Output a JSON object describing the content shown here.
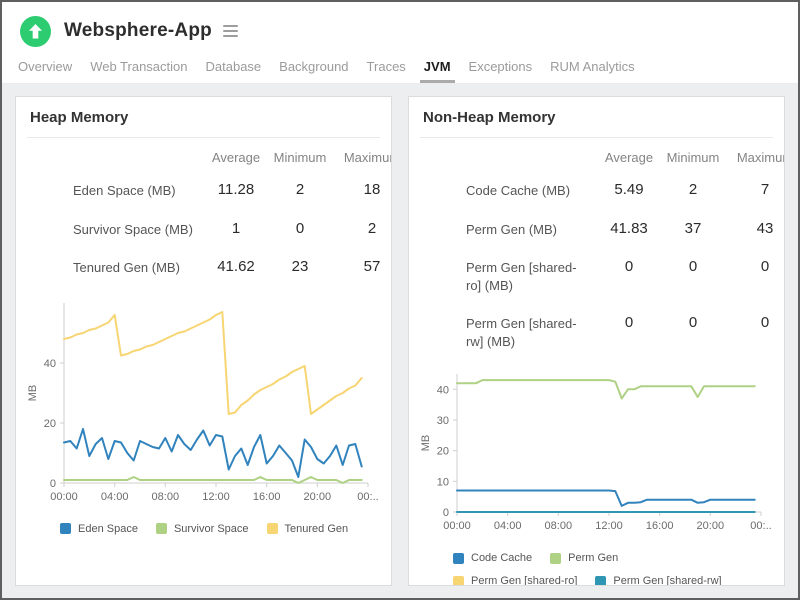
{
  "header": {
    "app_title": "Websphere-App",
    "status_icon": "up-arrow-circle",
    "status_color": "#2ecc71",
    "menu_icon": "hamburger"
  },
  "tabs": [
    {
      "label": "Overview",
      "active": false
    },
    {
      "label": "Web Transaction",
      "active": false
    },
    {
      "label": "Database",
      "active": false
    },
    {
      "label": "Background",
      "active": false
    },
    {
      "label": "Traces",
      "active": false
    },
    {
      "label": "JVM",
      "active": true
    },
    {
      "label": "Exceptions",
      "active": false
    },
    {
      "label": "RUM Analytics",
      "active": false
    }
  ],
  "panels": [
    {
      "title": "Heap Memory",
      "table": {
        "headers": [
          "Average",
          "Minimum",
          "Maximum"
        ],
        "rows": [
          {
            "label": "Eden Space (MB)",
            "values": [
              "11.28",
              "2",
              "18"
            ]
          },
          {
            "label": "Survivor Space (MB)",
            "values": [
              "1",
              "0",
              "2"
            ]
          },
          {
            "label": "Tenured Gen (MB)",
            "values": [
              "41.62",
              "23",
              "57"
            ]
          }
        ]
      }
    },
    {
      "title": "Non-Heap Memory",
      "table": {
        "headers": [
          "Average",
          "Minimum",
          "Maximum"
        ],
        "rows": [
          {
            "label": "Code Cache (MB)",
            "values": [
              "5.49",
              "2",
              "7"
            ]
          },
          {
            "label": "Perm Gen (MB)",
            "values": [
              "41.83",
              "37",
              "43"
            ]
          },
          {
            "label": "Perm Gen [shared-ro] (MB)",
            "values": [
              "0",
              "0",
              "0"
            ]
          },
          {
            "label": "Perm Gen [shared-rw] (MB)",
            "values": [
              "0",
              "0",
              "0"
            ]
          }
        ]
      }
    }
  ],
  "chart_data": [
    {
      "type": "line",
      "title": "Heap Memory",
      "xlabel": "",
      "ylabel": "MB",
      "ylim": [
        0,
        60
      ],
      "yticks": [
        0,
        20,
        40
      ],
      "grid": "off",
      "legend_position": "bottom",
      "legend_wrap": false,
      "x_labels": [
        "00:00",
        "04:00",
        "08:00",
        "12:00",
        "16:00",
        "20:00",
        "00:.."
      ],
      "series": [
        {
          "name": "Eden Space",
          "color": "#3183bd",
          "values": [
            13.5,
            14,
            11.5,
            18,
            9,
            13,
            15,
            8,
            14,
            13.5,
            10,
            7.5,
            14,
            13,
            12,
            11.5,
            15,
            10.5,
            16,
            13,
            11,
            14.5,
            17.5,
            12.5,
            16,
            15.5,
            4.5,
            9,
            11.5,
            6,
            12,
            16,
            6.5,
            9,
            12.5,
            10,
            7.5,
            2,
            14.5,
            12,
            8,
            6.5,
            9,
            12.5,
            6,
            12.5,
            13,
            5.5
          ]
        },
        {
          "name": "Survivor Space",
          "color": "#aed184",
          "values": [
            1,
            1,
            1,
            1,
            1,
            1,
            1,
            1,
            1,
            1,
            1,
            2,
            1,
            1,
            1,
            1,
            1,
            1,
            1,
            1,
            1,
            1,
            1,
            1,
            1,
            1,
            1,
            1,
            1,
            1,
            1,
            2,
            1,
            1,
            1,
            1,
            1,
            0,
            1,
            2,
            1,
            1,
            1,
            1,
            0,
            1,
            1,
            1
          ]
        },
        {
          "name": "Tenured Gen",
          "color": "#f7d573",
          "values": [
            48,
            48.5,
            49.5,
            50,
            51,
            51.5,
            52.5,
            53.5,
            56,
            42.5,
            43,
            44,
            44.5,
            45.5,
            46,
            47,
            48,
            49,
            50,
            50.5,
            51.5,
            52.5,
            53.5,
            54.5,
            56,
            57,
            23,
            23.5,
            26,
            27.5,
            29.5,
            31,
            32,
            33,
            34.5,
            35.5,
            37,
            38,
            39,
            23,
            24.5,
            26,
            27.5,
            29,
            30,
            31.5,
            32.5,
            35
          ]
        }
      ]
    },
    {
      "type": "line",
      "title": "Non-Heap Memory",
      "xlabel": "",
      "ylabel": "MB",
      "ylim": [
        0,
        45
      ],
      "yticks": [
        0,
        10,
        20,
        30,
        40
      ],
      "grid": "off",
      "legend_position": "bottom",
      "legend_wrap": true,
      "x_labels": [
        "00:00",
        "04:00",
        "08:00",
        "12:00",
        "16:00",
        "20:00",
        "00:.."
      ],
      "series": [
        {
          "name": "Code Cache",
          "color": "#3183bd",
          "values": [
            7,
            7,
            7,
            7,
            7,
            7,
            7,
            7,
            7,
            7,
            7,
            7,
            7,
            7,
            7,
            7,
            7,
            7,
            7,
            7,
            7,
            7,
            7,
            7,
            7,
            6.8,
            2,
            3,
            3,
            3.2,
            4,
            4,
            4,
            4,
            4,
            4,
            4,
            4,
            3,
            3.2,
            4,
            4,
            4,
            4,
            4,
            4,
            4,
            4
          ]
        },
        {
          "name": "Perm Gen",
          "color": "#aed184",
          "values": [
            42,
            42,
            42,
            42,
            43,
            43,
            43,
            43,
            43,
            43,
            43,
            43,
            43,
            43,
            43,
            43,
            43,
            43,
            43,
            43,
            43,
            43,
            43,
            43,
            43,
            42.5,
            37,
            40,
            40,
            41,
            41,
            41,
            41,
            41,
            41,
            41,
            41,
            41,
            37.5,
            41,
            41,
            41,
            41,
            41,
            41,
            41,
            41,
            41
          ]
        },
        {
          "name": "Perm Gen [shared-ro]",
          "color": "#f7d573",
          "values": [
            0,
            0,
            0,
            0,
            0,
            0,
            0,
            0,
            0,
            0,
            0,
            0,
            0,
            0,
            0,
            0,
            0,
            0,
            0,
            0,
            0,
            0,
            0,
            0,
            0,
            0,
            0,
            0,
            0,
            0,
            0,
            0,
            0,
            0,
            0,
            0,
            0,
            0,
            0,
            0,
            0,
            0,
            0,
            0,
            0,
            0,
            0,
            0
          ]
        },
        {
          "name": "Perm Gen [shared-rw]",
          "color": "#2f96b4",
          "values": [
            0,
            0,
            0,
            0,
            0,
            0,
            0,
            0,
            0,
            0,
            0,
            0,
            0,
            0,
            0,
            0,
            0,
            0,
            0,
            0,
            0,
            0,
            0,
            0,
            0,
            0,
            0,
            0,
            0,
            0,
            0,
            0,
            0,
            0,
            0,
            0,
            0,
            0,
            0,
            0,
            0,
            0,
            0,
            0,
            0,
            0,
            0,
            0
          ]
        }
      ]
    }
  ],
  "colors": {
    "status_green": "#2ecc71",
    "page_bg": "#edeef0",
    "panel_border": "#dcdcdc",
    "axis": "#cfcfcf",
    "axis_text": "#6b6b6b",
    "active_tab_underline": "#ababab"
  }
}
